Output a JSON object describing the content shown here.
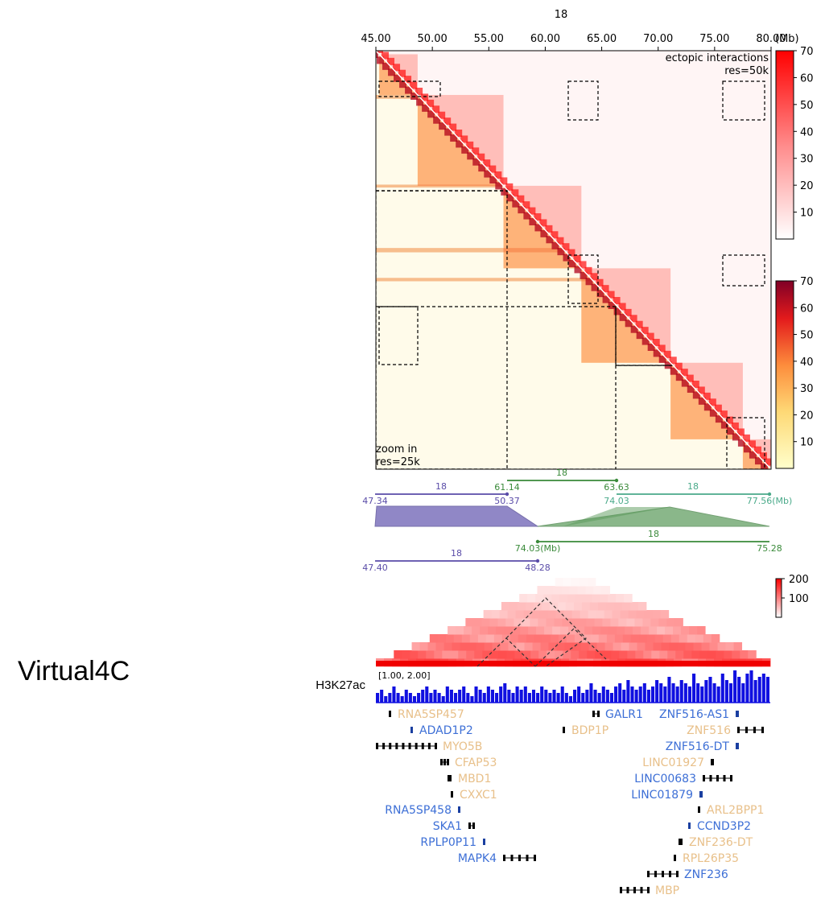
{
  "page": {
    "side_label": "Virtual4C",
    "track_label": "H3K27ac",
    "colors": {
      "red": "#e02020",
      "blue": "#1010e0",
      "purple": "#5a4ca8",
      "green": "#3a8a3a",
      "teal": "#4aaa8a",
      "gene_blue": "#3d6fd6",
      "gene_orange": "#e8c08a"
    }
  },
  "chart_data": [
    {
      "type": "heatmap",
      "title": "18",
      "xlabel": "(Mb)",
      "xlim": [
        45.0,
        80.0
      ],
      "xticks": [
        "45.00",
        "50.00",
        "55.00",
        "60.00",
        "65.00",
        "70.00",
        "75.00",
        "80.00"
      ],
      "annotation_top": [
        "ectopic interactions",
        "res=50k"
      ],
      "annotation_bottom": [
        "zoom in",
        "res=25k"
      ],
      "colorbars": [
        {
          "cmap": "white-red",
          "ticks": [
            "10",
            "20",
            "30",
            "40",
            "50",
            "60",
            "70"
          ],
          "range": [
            0,
            70
          ]
        },
        {
          "cmap": "yellow-red",
          "ticks": [
            "10",
            "20",
            "30",
            "40",
            "50",
            "60",
            "70"
          ],
          "range": [
            0,
            70
          ]
        }
      ],
      "tads": [
        [
          45.3,
          48.7
        ],
        [
          48.7,
          56.3
        ],
        [
          56.3,
          63.2
        ],
        [
          63.2,
          71.1
        ],
        [
          71.1,
          77.5
        ],
        [
          77.5,
          80.0
        ]
      ]
    },
    {
      "type": "line",
      "segments": [
        {
          "chrom": "18",
          "start": "47.34",
          "end": "50.37",
          "row": "upper"
        },
        {
          "chrom": "18",
          "start": "61.14",
          "end": "63.63",
          "row": "upper"
        },
        {
          "chrom": "18",
          "start": "74.03",
          "end": "77.56",
          "unit": "(Mb)",
          "row": "upper"
        },
        {
          "chrom": "18",
          "start": "75.28",
          "end": "74.03",
          "unit": "(Mb)",
          "row": "lower"
        },
        {
          "chrom": "18",
          "start": "47.40",
          "end": "48.28",
          "row": "lower"
        }
      ]
    },
    {
      "type": "heatmap",
      "colorbar_ticks": [
        "200",
        "100"
      ],
      "range": [
        0,
        200
      ]
    },
    {
      "type": "bar",
      "name": "H3K27ac",
      "range_label": "[1.00, 2.00]",
      "values": [
        0.3,
        0.4,
        0.2,
        0.3,
        0.5,
        0.3,
        0.2,
        0.4,
        0.3,
        0.2,
        0.3,
        0.4,
        0.5,
        0.3,
        0.4,
        0.3,
        0.2,
        0.5,
        0.4,
        0.3,
        0.4,
        0.5,
        0.3,
        0.2,
        0.5,
        0.4,
        0.3,
        0.5,
        0.4,
        0.3,
        0.5,
        0.6,
        0.4,
        0.3,
        0.5,
        0.4,
        0.5,
        0.3,
        0.4,
        0.3,
        0.5,
        0.4,
        0.3,
        0.4,
        0.3,
        0.5,
        0.3,
        0.2,
        0.4,
        0.5,
        0.3,
        0.4,
        0.6,
        0.4,
        0.3,
        0.5,
        0.4,
        0.3,
        0.5,
        0.6,
        0.4,
        0.7,
        0.5,
        0.4,
        0.5,
        0.6,
        0.4,
        0.5,
        0.7,
        0.6,
        0.5,
        0.8,
        0.6,
        0.5,
        0.7,
        0.6,
        0.5,
        0.9,
        0.6,
        0.5,
        0.7,
        0.8,
        0.6,
        0.5,
        0.9,
        0.7,
        0.6,
        1.0,
        0.8,
        0.6,
        0.9,
        1.0,
        0.7,
        0.8,
        0.9,
        0.8
      ]
    }
  ],
  "genes": [
    {
      "name": "RNA5SP457",
      "color": "orange",
      "side": "right",
      "gx": 483,
      "y": 887,
      "w": 3
    },
    {
      "name": "ADAD1P2",
      "color": "blue",
      "side": "right",
      "gx": 510,
      "y": 907,
      "w": 3
    },
    {
      "name": "MYO5B",
      "color": "orange",
      "side": "right",
      "gx": 467,
      "y": 927,
      "w": 75,
      "exons": true
    },
    {
      "name": "CFAP53",
      "color": "orange",
      "side": "right",
      "gx": 547,
      "y": 947,
      "w": 10,
      "exons": true
    },
    {
      "name": "MBD1",
      "color": "orange",
      "side": "right",
      "gx": 556,
      "y": 967,
      "w": 5
    },
    {
      "name": "CXXC1",
      "color": "orange",
      "side": "right",
      "gx": 560,
      "y": 987,
      "w": 3
    },
    {
      "name": "RNA5SP458",
      "color": "blue",
      "side": "left",
      "gx": 569,
      "y": 1006,
      "w": 3
    },
    {
      "name": "SKA1",
      "color": "blue",
      "side": "left",
      "gx": 582,
      "y": 1026,
      "w": 7
    },
    {
      "name": "RPLP0P11",
      "color": "blue",
      "side": "left",
      "gx": 600,
      "y": 1046,
      "w": 3
    },
    {
      "name": "MAPK4",
      "color": "blue",
      "side": "left",
      "gx": 625,
      "y": 1066,
      "w": 40,
      "exons": true
    },
    {
      "name": "GALR1",
      "color": "blue",
      "side": "right",
      "gx": 736,
      "y": 887,
      "w": 8
    },
    {
      "name": "BDP1P",
      "color": "orange",
      "side": "right",
      "gx": 699,
      "y": 907,
      "w": 3
    },
    {
      "name": "ZNF516-AS1",
      "color": "blue",
      "side": "left",
      "gx": 914,
      "y": 887,
      "w": 4
    },
    {
      "name": "ZNF516",
      "color": "orange",
      "side": "left",
      "gx": 916,
      "y": 907,
      "w": 32,
      "exons": true
    },
    {
      "name": "ZNF516-DT",
      "color": "blue",
      "side": "left",
      "gx": 914,
      "y": 927,
      "w": 4
    },
    {
      "name": "LINC01927",
      "color": "orange",
      "side": "left",
      "gx": 883,
      "y": 947,
      "w": 4
    },
    {
      "name": "LINC00683",
      "color": "blue",
      "side": "left",
      "gx": 873,
      "y": 967,
      "w": 36,
      "exons": true
    },
    {
      "name": "LINC01879",
      "color": "blue",
      "side": "left",
      "gx": 869,
      "y": 987,
      "w": 4
    },
    {
      "name": "ARL2BPP1",
      "color": "orange",
      "side": "right",
      "gx": 867,
      "y": 1006,
      "w": 3
    },
    {
      "name": "CCND3P2",
      "color": "blue",
      "side": "right",
      "gx": 855,
      "y": 1026,
      "w": 3
    },
    {
      "name": "ZNF236-DT",
      "color": "orange",
      "side": "right",
      "gx": 843,
      "y": 1046,
      "w": 5
    },
    {
      "name": "RPL26P35",
      "color": "orange",
      "side": "right",
      "gx": 837,
      "y": 1066,
      "w": 3
    },
    {
      "name": "ZNF236",
      "color": "blue",
      "side": "right",
      "gx": 804,
      "y": 1086,
      "w": 38,
      "exons": true
    },
    {
      "name": "MBP",
      "color": "orange",
      "side": "right",
      "gx": 770,
      "y": 1106,
      "w": 36,
      "exons": true
    }
  ]
}
